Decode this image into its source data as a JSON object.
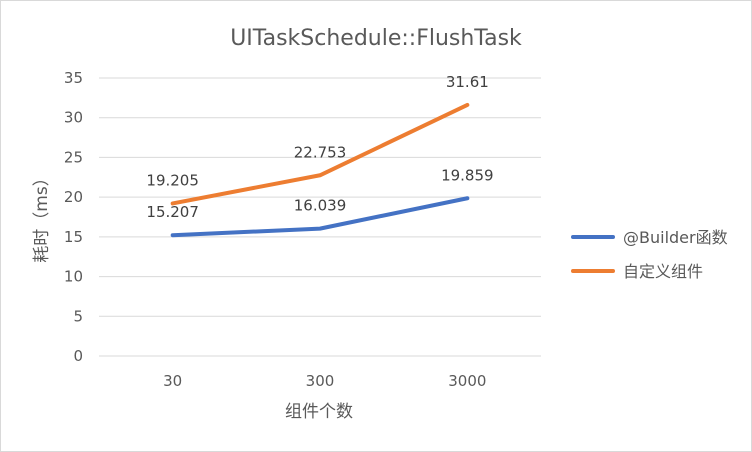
{
  "chart_data": {
    "type": "line",
    "title": "UITaskSchedule::FlushTask",
    "xlabel": "组件个数",
    "ylabel": "耗时（ms）",
    "categories": [
      "30",
      "300",
      "3000"
    ],
    "ylim": [
      0,
      35
    ],
    "yticks": [
      "0",
      "5",
      "10",
      "15",
      "20",
      "25",
      "30",
      "35"
    ],
    "grid": true,
    "legend_position": "right",
    "series": [
      {
        "name": "@Builder函数",
        "values": [
          15.207,
          16.039,
          19.859
        ],
        "labels": [
          "15.207",
          "16.039",
          "19.859"
        ],
        "color": "#4472c4"
      },
      {
        "name": "自定义组件",
        "values": [
          19.205,
          22.753,
          31.61
        ],
        "labels": [
          "19.205",
          "22.753",
          "31.61"
        ],
        "color": "#ed7d31"
      }
    ]
  }
}
